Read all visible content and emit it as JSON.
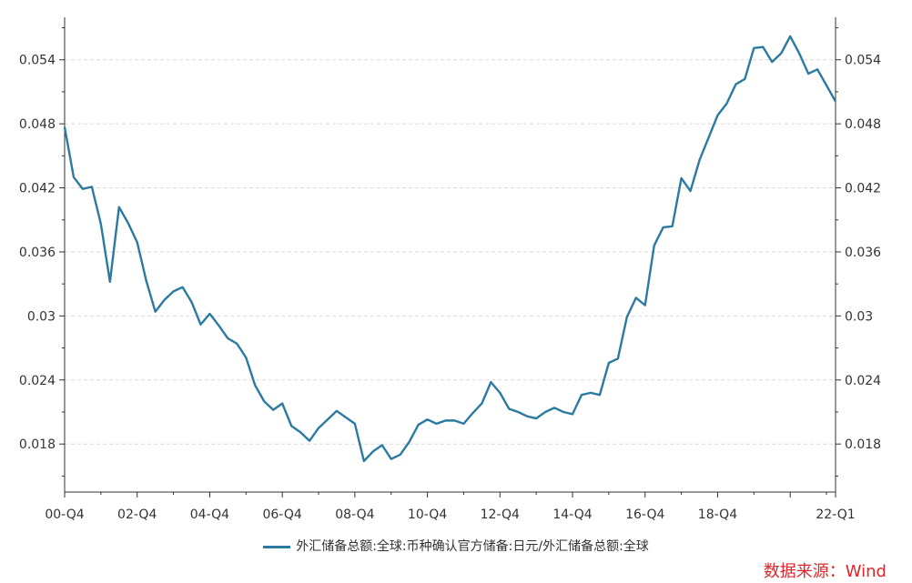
{
  "chart_data": {
    "type": "line",
    "title": "",
    "xlabel": "",
    "ylabel": "",
    "x_ticks": [
      "00-Q4",
      "02-Q4",
      "04-Q4",
      "06-Q4",
      "08-Q4",
      "10-Q4",
      "12-Q4",
      "14-Q4",
      "16-Q4",
      "18-Q4",
      "22-Q1"
    ],
    "y_ticks": [
      0.018,
      0.024,
      0.03,
      0.036,
      0.042,
      0.048,
      0.054
    ],
    "y_tick_labels": [
      "0.018",
      "0.024",
      "0.03",
      "0.036",
      "0.042",
      "0.048",
      "0.054"
    ],
    "ylim": [
      0.0135,
      0.0573
    ],
    "grid": "horizontal-dashed",
    "legend_position": "bottom",
    "color": "#2b7aa1",
    "series": [
      {
        "name": "外汇储备总额:全球:币种确认官方储备:日元/外汇储备总额:全球",
        "x": [
          "2000-Q4",
          "2001-Q1",
          "2001-Q2",
          "2001-Q3",
          "2001-Q4",
          "2002-Q1",
          "2002-Q2",
          "2002-Q3",
          "2002-Q4",
          "2003-Q1",
          "2003-Q2",
          "2003-Q3",
          "2003-Q4",
          "2004-Q1",
          "2004-Q2",
          "2004-Q3",
          "2004-Q4",
          "2005-Q1",
          "2005-Q2",
          "2005-Q3",
          "2005-Q4",
          "2006-Q1",
          "2006-Q2",
          "2006-Q3",
          "2006-Q4",
          "2007-Q1",
          "2007-Q2",
          "2007-Q3",
          "2007-Q4",
          "2008-Q1",
          "2008-Q2",
          "2008-Q3",
          "2008-Q4",
          "2009-Q1",
          "2009-Q2",
          "2009-Q3",
          "2009-Q4",
          "2010-Q1",
          "2010-Q2",
          "2010-Q3",
          "2010-Q4",
          "2011-Q1",
          "2011-Q2",
          "2011-Q3",
          "2011-Q4",
          "2012-Q1",
          "2012-Q2",
          "2012-Q3",
          "2012-Q4",
          "2013-Q1",
          "2013-Q2",
          "2013-Q3",
          "2013-Q4",
          "2014-Q1",
          "2014-Q2",
          "2014-Q3",
          "2014-Q4",
          "2015-Q1",
          "2015-Q2",
          "2015-Q3",
          "2015-Q4",
          "2016-Q1",
          "2016-Q2",
          "2016-Q3",
          "2016-Q4",
          "2017-Q1",
          "2017-Q2",
          "2017-Q3",
          "2017-Q4",
          "2018-Q1",
          "2018-Q2",
          "2018-Q3",
          "2018-Q4",
          "2019-Q1",
          "2019-Q2",
          "2019-Q3",
          "2019-Q4",
          "2020-Q1",
          "2020-Q2",
          "2020-Q3",
          "2020-Q4",
          "2021-Q1",
          "2021-Q2",
          "2021-Q3",
          "2021-Q4",
          "2022-Q1"
        ],
        "values": [
          0.0477,
          0.043,
          0.0419,
          0.0421,
          0.0386,
          0.0332,
          0.0402,
          0.0387,
          0.0369,
          0.0333,
          0.0304,
          0.0315,
          0.0323,
          0.0327,
          0.0313,
          0.0292,
          0.0302,
          0.0291,
          0.0279,
          0.0274,
          0.0261,
          0.0235,
          0.022,
          0.0212,
          0.0218,
          0.0197,
          0.0191,
          0.0183,
          0.0195,
          0.0203,
          0.0211,
          0.0205,
          0.0199,
          0.0164,
          0.0173,
          0.0179,
          0.0166,
          0.017,
          0.0182,
          0.0198,
          0.0203,
          0.0199,
          0.0202,
          0.0202,
          0.0199,
          0.0209,
          0.0218,
          0.0238,
          0.0228,
          0.0213,
          0.021,
          0.0206,
          0.0204,
          0.021,
          0.0214,
          0.021,
          0.0208,
          0.0226,
          0.0228,
          0.0226,
          0.0256,
          0.026,
          0.0299,
          0.0317,
          0.031,
          0.0366,
          0.0383,
          0.0384,
          0.0429,
          0.0417,
          0.0446,
          0.0467,
          0.0488,
          0.0499,
          0.0517,
          0.0522,
          0.0551,
          0.0552,
          0.0538,
          0.0546,
          0.0562,
          0.0546,
          0.0527,
          0.0531,
          0.0516,
          0.0501
        ]
      }
    ]
  },
  "source_label": "数据来源：Wind"
}
